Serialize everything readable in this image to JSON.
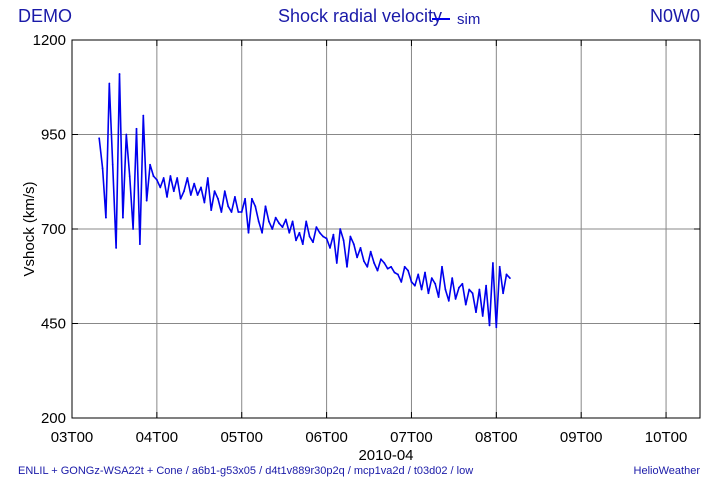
{
  "header": {
    "left_label": "DEMO",
    "right_label": "N0W0"
  },
  "footer": {
    "left_text": "ENLIL + GONGz-WSA22t + Cone / a6b1-g53x05 / d4t1v889r30p2q / mcp1va2d / t03d02 / low",
    "right_text": "HelioWeather"
  },
  "colors": {
    "series": "#0000ee",
    "text": "#1a1aa8",
    "grid": "#888888",
    "axis": "#000000"
  },
  "chart_data": {
    "type": "line",
    "title": "Shock radial velocity",
    "ylabel": "Vshock (km/s)",
    "xlabel": "2010-04",
    "ylim": [
      200,
      1200
    ],
    "xlim": [
      3.0,
      10.4
    ],
    "xticks": [
      {
        "label": "03T00",
        "value": 3.0
      },
      {
        "label": "04T00",
        "value": 4.0
      },
      {
        "label": "05T00",
        "value": 5.0
      },
      {
        "label": "06T00",
        "value": 6.0
      },
      {
        "label": "07T00",
        "value": 7.0
      },
      {
        "label": "08T00",
        "value": 8.0
      },
      {
        "label": "09T00",
        "value": 9.0
      },
      {
        "label": "10T00",
        "value": 10.0
      }
    ],
    "yticks": [
      200,
      450,
      700,
      950,
      1200
    ],
    "grid": true,
    "legend": "top-center",
    "series": [
      {
        "name": "sim",
        "color": "#0000ee",
        "points": [
          [
            3.32,
            940
          ],
          [
            3.36,
            860
          ],
          [
            3.4,
            730
          ],
          [
            3.44,
            1085
          ],
          [
            3.48,
            870
          ],
          [
            3.52,
            650
          ],
          [
            3.56,
            1110
          ],
          [
            3.6,
            730
          ],
          [
            3.64,
            950
          ],
          [
            3.68,
            840
          ],
          [
            3.72,
            700
          ],
          [
            3.76,
            965
          ],
          [
            3.8,
            660
          ],
          [
            3.84,
            1000
          ],
          [
            3.88,
            775
          ],
          [
            3.92,
            870
          ],
          [
            3.96,
            840
          ],
          [
            4.0,
            830
          ],
          [
            4.04,
            810
          ],
          [
            4.08,
            835
          ],
          [
            4.12,
            785
          ],
          [
            4.16,
            840
          ],
          [
            4.2,
            800
          ],
          [
            4.24,
            835
          ],
          [
            4.28,
            780
          ],
          [
            4.32,
            800
          ],
          [
            4.36,
            835
          ],
          [
            4.4,
            790
          ],
          [
            4.44,
            820
          ],
          [
            4.48,
            790
          ],
          [
            4.52,
            810
          ],
          [
            4.56,
            770
          ],
          [
            4.6,
            835
          ],
          [
            4.64,
            750
          ],
          [
            4.68,
            800
          ],
          [
            4.72,
            780
          ],
          [
            4.76,
            745
          ],
          [
            4.8,
            800
          ],
          [
            4.84,
            760
          ],
          [
            4.88,
            745
          ],
          [
            4.92,
            785
          ],
          [
            4.96,
            745
          ],
          [
            5.0,
            745
          ],
          [
            5.04,
            780
          ],
          [
            5.08,
            690
          ],
          [
            5.12,
            780
          ],
          [
            5.16,
            760
          ],
          [
            5.2,
            720
          ],
          [
            5.24,
            690
          ],
          [
            5.28,
            760
          ],
          [
            5.32,
            720
          ],
          [
            5.36,
            700
          ],
          [
            5.4,
            730
          ],
          [
            5.44,
            715
          ],
          [
            5.48,
            705
          ],
          [
            5.52,
            725
          ],
          [
            5.56,
            690
          ],
          [
            5.6,
            720
          ],
          [
            5.64,
            670
          ],
          [
            5.68,
            690
          ],
          [
            5.72,
            660
          ],
          [
            5.76,
            720
          ],
          [
            5.8,
            680
          ],
          [
            5.84,
            665
          ],
          [
            5.88,
            705
          ],
          [
            5.92,
            690
          ],
          [
            5.96,
            680
          ],
          [
            6.0,
            675
          ],
          [
            6.04,
            650
          ],
          [
            6.08,
            685
          ],
          [
            6.12,
            610
          ],
          [
            6.16,
            700
          ],
          [
            6.2,
            670
          ],
          [
            6.24,
            600
          ],
          [
            6.28,
            680
          ],
          [
            6.32,
            660
          ],
          [
            6.36,
            625
          ],
          [
            6.4,
            650
          ],
          [
            6.44,
            615
          ],
          [
            6.48,
            600
          ],
          [
            6.52,
            640
          ],
          [
            6.56,
            610
          ],
          [
            6.6,
            590
          ],
          [
            6.64,
            620
          ],
          [
            6.68,
            610
          ],
          [
            6.72,
            595
          ],
          [
            6.76,
            600
          ],
          [
            6.8,
            585
          ],
          [
            6.84,
            580
          ],
          [
            6.88,
            560
          ],
          [
            6.92,
            600
          ],
          [
            6.96,
            590
          ],
          [
            7.0,
            560
          ],
          [
            7.04,
            550
          ],
          [
            7.08,
            580
          ],
          [
            7.12,
            540
          ],
          [
            7.16,
            585
          ],
          [
            7.2,
            530
          ],
          [
            7.24,
            570
          ],
          [
            7.28,
            555
          ],
          [
            7.32,
            520
          ],
          [
            7.36,
            600
          ],
          [
            7.4,
            540
          ],
          [
            7.44,
            510
          ],
          [
            7.48,
            570
          ],
          [
            7.52,
            515
          ],
          [
            7.56,
            545
          ],
          [
            7.6,
            555
          ],
          [
            7.64,
            500
          ],
          [
            7.68,
            540
          ],
          [
            7.72,
            530
          ],
          [
            7.76,
            480
          ],
          [
            7.8,
            540
          ],
          [
            7.84,
            470
          ],
          [
            7.88,
            550
          ],
          [
            7.92,
            445
          ],
          [
            7.96,
            610
          ],
          [
            8.0,
            440
          ],
          [
            8.04,
            600
          ],
          [
            8.08,
            530
          ],
          [
            8.12,
            580
          ],
          [
            8.16,
            570
          ]
        ]
      }
    ]
  }
}
